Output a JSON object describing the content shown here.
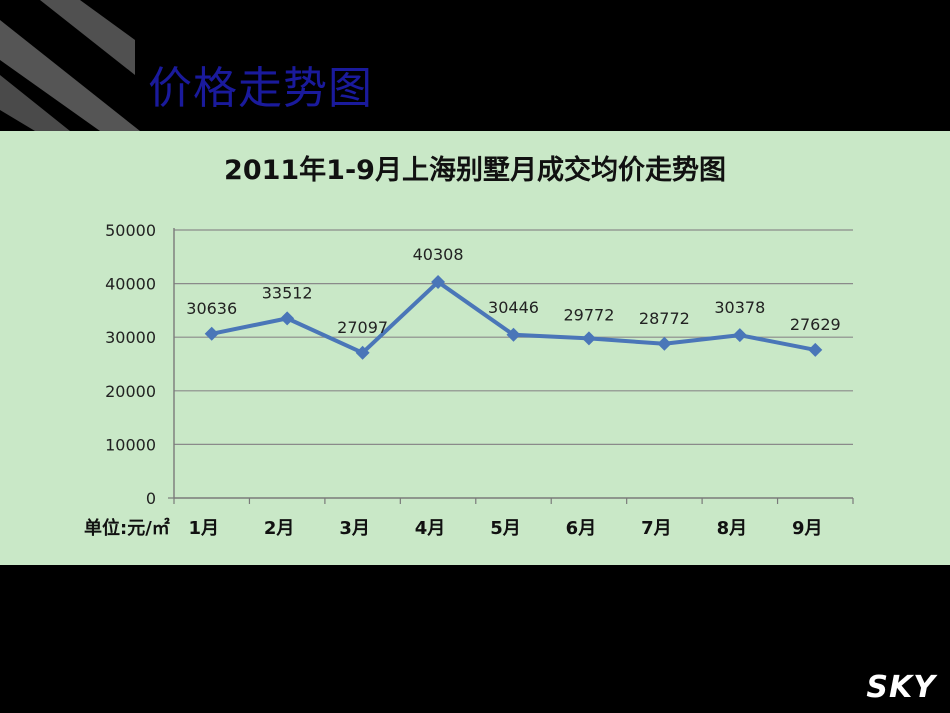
{
  "slide": {
    "title": "价格走势图"
  },
  "logo": {
    "text": "SKY"
  },
  "colors": {
    "panel_bg": "#c9e8c7",
    "line": "#4a76b8",
    "title": "#1a1a9c"
  },
  "chart_data": {
    "type": "line",
    "title": "2011年1-9月上海别墅月成交均价走势图",
    "unit_label": "单位:元/㎡",
    "categories": [
      "1月",
      "2月",
      "3月",
      "4月",
      "5月",
      "6月",
      "7月",
      "8月",
      "9月"
    ],
    "series": [
      {
        "values": [
          30636,
          33512,
          27097,
          40308,
          30446,
          29772,
          28772,
          30378,
          27629
        ]
      }
    ],
    "ylim": [
      0,
      50000
    ],
    "yticks": [
      0,
      10000,
      20000,
      30000,
      40000,
      50000
    ],
    "grid": true,
    "marker": "diamond"
  }
}
